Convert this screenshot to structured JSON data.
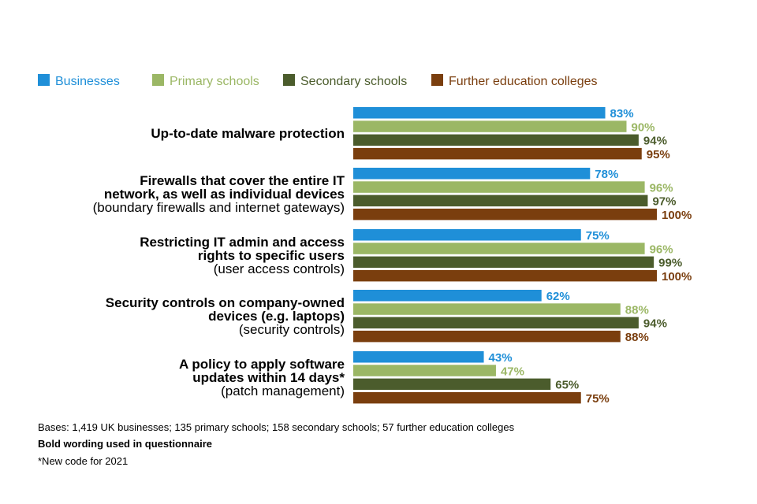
{
  "chart_data": {
    "type": "bar",
    "orientation": "horizontal",
    "xlim": [
      0,
      100
    ],
    "value_suffix": "%",
    "legend_position": "top",
    "categories": [
      {
        "bold": [
          "Up-to-date malware protection"
        ],
        "note": ""
      },
      {
        "bold": [
          "Firewalls that cover the entire IT",
          "network, as well as individual devices"
        ],
        "note": "(boundary firewalls and internet gateways)"
      },
      {
        "bold": [
          "Restricting IT admin and access",
          "rights to specific users"
        ],
        "note": "(user access controls)"
      },
      {
        "bold": [
          "Security controls on company-owned",
          "devices (e.g. laptops)"
        ],
        "note": "(security controls)"
      },
      {
        "bold": [
          "A policy to apply software",
          "updates within 14 days*"
        ],
        "note": "(patch management)"
      }
    ],
    "series": [
      {
        "name": "Businesses",
        "color": "#1F8FD8",
        "label_color": "#1F8FD8",
        "values": [
          83,
          78,
          75,
          62,
          43
        ]
      },
      {
        "name": "Primary schools",
        "color": "#9BB765",
        "label_color": "#9BB765",
        "values": [
          90,
          96,
          96,
          88,
          47
        ]
      },
      {
        "name": "Secondary schools",
        "color": "#4B5C2C",
        "label_color": "#4B5C2C",
        "values": [
          94,
          97,
          99,
          94,
          65
        ]
      },
      {
        "name": "Further education colleges",
        "color": "#7A3E0E",
        "label_color": "#7A3E0E",
        "values": [
          95,
          100,
          100,
          88,
          75
        ]
      }
    ]
  },
  "footer": {
    "bases": "Bases: 1,419 UK businesses; 135 primary schools; 158 secondary schools; 57 further education colleges",
    "bold_note": "Bold wording used in questionnaire",
    "new_code": "*New code for 2021"
  }
}
